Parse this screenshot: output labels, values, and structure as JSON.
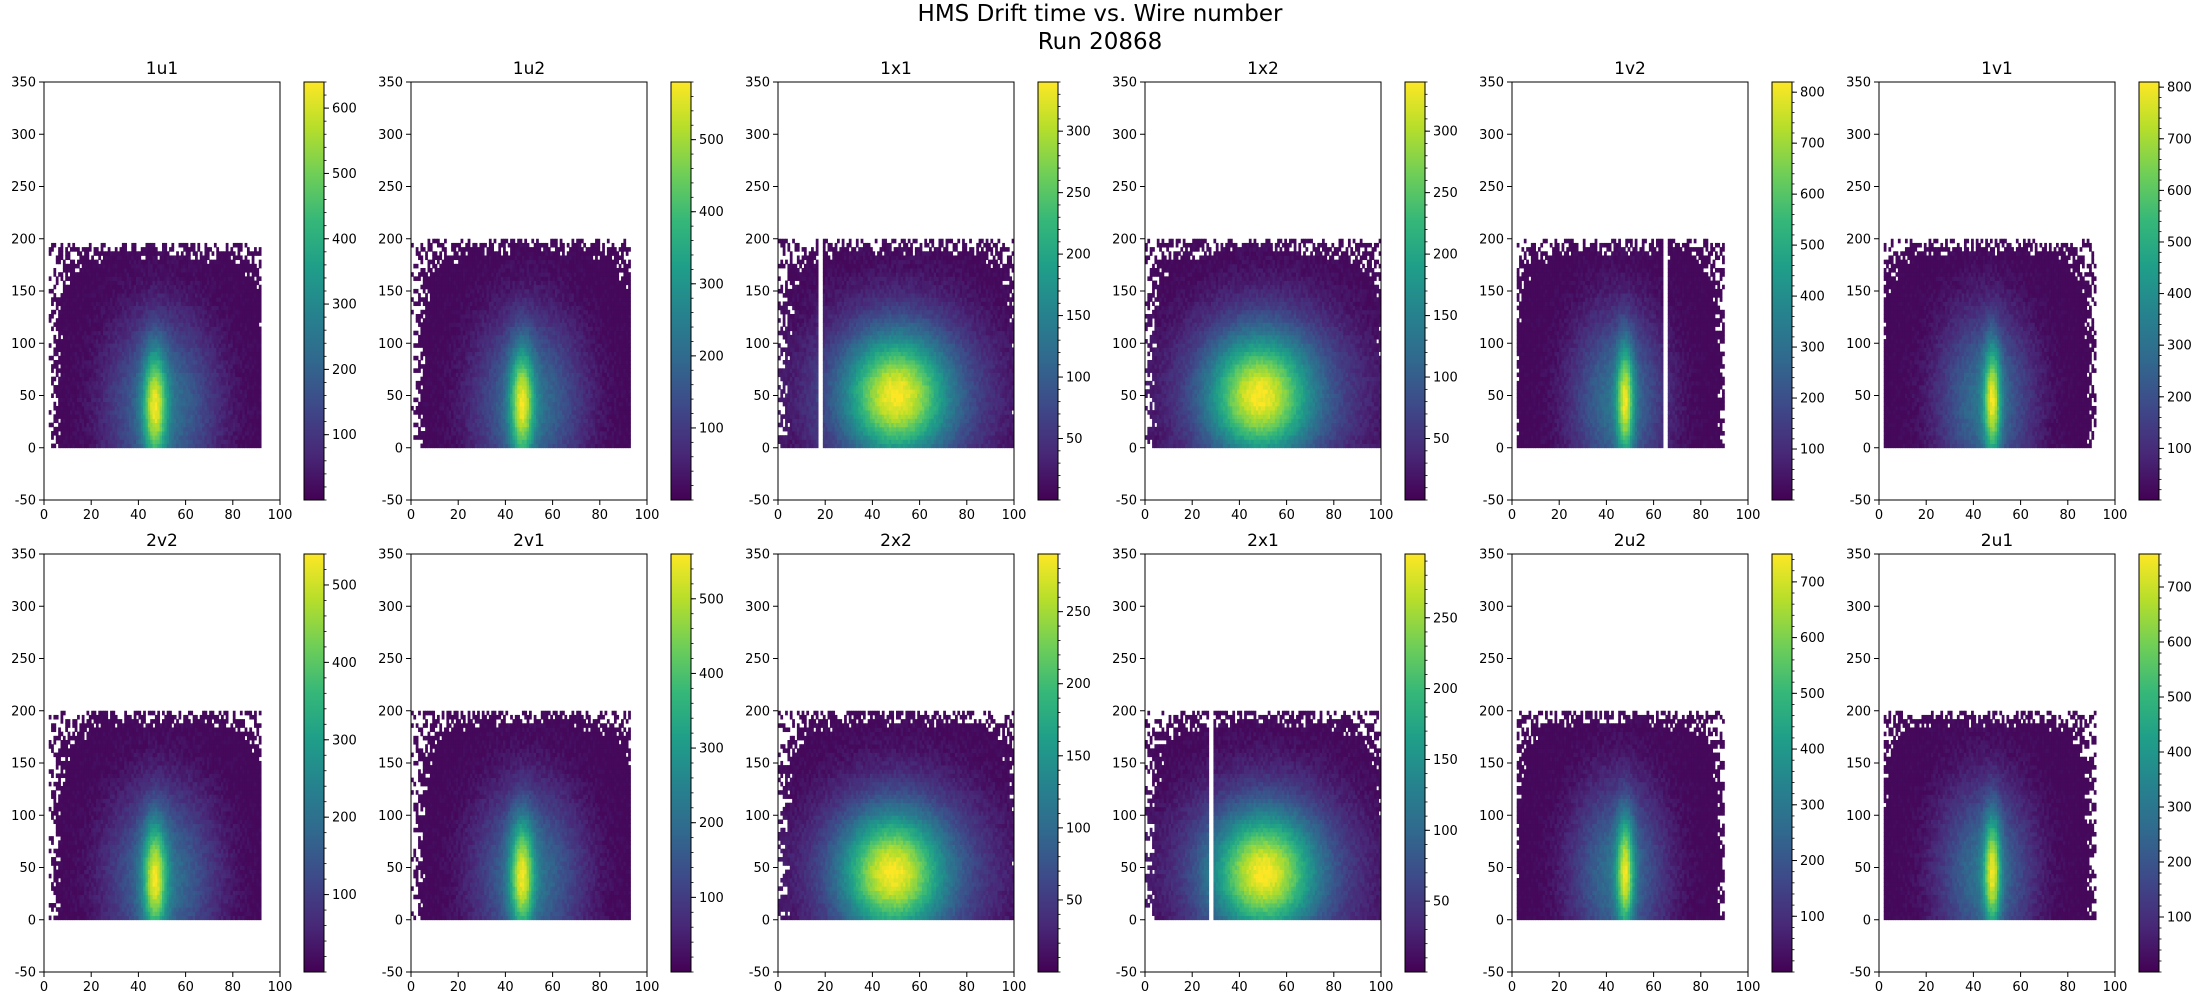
{
  "figure": {
    "title_line1": "HMS Drift time vs. Wire number",
    "title_line2": "Run 20868"
  },
  "colormap": [
    "#440154",
    "#482878",
    "#3e4989",
    "#31688e",
    "#26828e",
    "#1f9e89",
    "#35b779",
    "#6ece58",
    "#b5de2b",
    "#fde725"
  ],
  "chart_data": [
    {
      "type": "heatmap",
      "title": "1u1",
      "xlim": [
        0,
        100
      ],
      "ylim": [
        -50,
        350
      ],
      "x_ticks": [
        0,
        20,
        40,
        60,
        80,
        100
      ],
      "y_ticks": [
        -50,
        0,
        50,
        100,
        150,
        200,
        250,
        300,
        350
      ],
      "colorbar": {
        "min": 0,
        "max": 640,
        "ticks": [
          100,
          200,
          300,
          400,
          500,
          600
        ]
      },
      "peak_wire": 47,
      "peak_time": 40,
      "core_width": 3.5,
      "halo_width": 16,
      "mean_wire": 50,
      "x_range": [
        2,
        92
      ],
      "y_max": 195,
      "gap_wires": []
    },
    {
      "type": "heatmap",
      "title": "1u2",
      "xlim": [
        0,
        100
      ],
      "ylim": [
        -50,
        350
      ],
      "x_ticks": [
        0,
        20,
        40,
        60,
        80,
        100
      ],
      "y_ticks": [
        -50,
        0,
        50,
        100,
        150,
        200,
        250,
        300,
        350
      ],
      "colorbar": {
        "min": 0,
        "max": 580,
        "ticks": [
          100,
          200,
          300,
          400,
          500
        ]
      },
      "peak_wire": 47,
      "peak_time": 42,
      "core_width": 3.5,
      "halo_width": 16,
      "mean_wire": 50,
      "x_range": [
        0,
        93
      ],
      "y_max": 200,
      "gap_wires": []
    },
    {
      "type": "heatmap",
      "title": "1x1",
      "xlim": [
        0,
        100
      ],
      "ylim": [
        -50,
        350
      ],
      "x_ticks": [
        0,
        20,
        40,
        60,
        80,
        100
      ],
      "y_ticks": [
        -50,
        0,
        50,
        100,
        150,
        200,
        250,
        300,
        350
      ],
      "colorbar": {
        "min": 0,
        "max": 340,
        "ticks": [
          50,
          100,
          150,
          200,
          250,
          300
        ]
      },
      "peak_wire": 50,
      "peak_time": 50,
      "core_width": 14,
      "halo_width": 26,
      "mean_wire": 52,
      "x_range": [
        0,
        100
      ],
      "y_max": 200,
      "gap_wires": [
        18
      ]
    },
    {
      "type": "heatmap",
      "title": "1x2",
      "xlim": [
        0,
        100
      ],
      "ylim": [
        -50,
        350
      ],
      "x_ticks": [
        0,
        20,
        40,
        60,
        80,
        100
      ],
      "y_ticks": [
        -50,
        0,
        50,
        100,
        150,
        200,
        250,
        300,
        350
      ],
      "colorbar": {
        "min": 0,
        "max": 340,
        "ticks": [
          50,
          100,
          150,
          200,
          250,
          300
        ]
      },
      "peak_wire": 48,
      "peak_time": 50,
      "core_width": 14,
      "halo_width": 26,
      "mean_wire": 52,
      "x_range": [
        0,
        100
      ],
      "y_max": 200,
      "gap_wires": []
    },
    {
      "type": "heatmap",
      "title": "1v2",
      "xlim": [
        0,
        100
      ],
      "ylim": [
        -50,
        350
      ],
      "x_ticks": [
        0,
        20,
        40,
        60,
        80,
        100
      ],
      "y_ticks": [
        -50,
        0,
        50,
        100,
        150,
        200,
        250,
        300,
        350
      ],
      "colorbar": {
        "min": 0,
        "max": 820,
        "ticks": [
          100,
          200,
          300,
          400,
          500,
          600,
          700,
          800
        ]
      },
      "peak_wire": 48,
      "peak_time": 45,
      "core_width": 2.5,
      "halo_width": 14,
      "mean_wire": 45,
      "x_range": [
        2,
        90
      ],
      "y_max": 200,
      "gap_wires": [
        65
      ]
    },
    {
      "type": "heatmap",
      "title": "1v1",
      "xlim": [
        0,
        100
      ],
      "ylim": [
        -50,
        350
      ],
      "x_ticks": [
        0,
        20,
        40,
        60,
        80,
        100
      ],
      "y_ticks": [
        -50,
        0,
        50,
        100,
        150,
        200,
        250,
        300,
        350
      ],
      "colorbar": {
        "min": 0,
        "max": 810,
        "ticks": [
          100,
          200,
          300,
          400,
          500,
          600,
          700,
          800
        ]
      },
      "peak_wire": 48,
      "peak_time": 45,
      "core_width": 2.5,
      "halo_width": 14,
      "mean_wire": 45,
      "x_range": [
        2,
        92
      ],
      "y_max": 200,
      "gap_wires": []
    },
    {
      "type": "heatmap",
      "title": "2v2",
      "xlim": [
        0,
        100
      ],
      "ylim": [
        -50,
        350
      ],
      "x_ticks": [
        0,
        20,
        40,
        60,
        80,
        100
      ],
      "y_ticks": [
        -50,
        0,
        50,
        100,
        150,
        200,
        250,
        300,
        350
      ],
      "colorbar": {
        "min": 0,
        "max": 540,
        "ticks": [
          100,
          200,
          300,
          400,
          500
        ]
      },
      "peak_wire": 47,
      "peak_time": 40,
      "core_width": 3.5,
      "halo_width": 16,
      "mean_wire": 50,
      "x_range": [
        2,
        92
      ],
      "y_max": 200,
      "gap_wires": []
    },
    {
      "type": "heatmap",
      "title": "2v1",
      "xlim": [
        0,
        100
      ],
      "ylim": [
        -50,
        350
      ],
      "x_ticks": [
        0,
        20,
        40,
        60,
        80,
        100
      ],
      "y_ticks": [
        -50,
        0,
        50,
        100,
        150,
        200,
        250,
        300,
        350
      ],
      "colorbar": {
        "min": 0,
        "max": 560,
        "ticks": [
          100,
          200,
          300,
          400,
          500
        ]
      },
      "peak_wire": 47,
      "peak_time": 42,
      "core_width": 3.5,
      "halo_width": 16,
      "mean_wire": 50,
      "x_range": [
        0,
        93
      ],
      "y_max": 200,
      "gap_wires": []
    },
    {
      "type": "heatmap",
      "title": "2x2",
      "xlim": [
        0,
        100
      ],
      "ylim": [
        -50,
        350
      ],
      "x_ticks": [
        0,
        20,
        40,
        60,
        80,
        100
      ],
      "y_ticks": [
        -50,
        0,
        50,
        100,
        150,
        200,
        250,
        300,
        350
      ],
      "colorbar": {
        "min": 0,
        "max": 290,
        "ticks": [
          50,
          100,
          150,
          200,
          250
        ]
      },
      "peak_wire": 48,
      "peak_time": 45,
      "core_width": 14,
      "halo_width": 26,
      "mean_wire": 52,
      "x_range": [
        0,
        100
      ],
      "y_max": 200,
      "gap_wires": []
    },
    {
      "type": "heatmap",
      "title": "2x1",
      "xlim": [
        0,
        100
      ],
      "ylim": [
        -50,
        350
      ],
      "x_ticks": [
        0,
        20,
        40,
        60,
        80,
        100
      ],
      "y_ticks": [
        -50,
        0,
        50,
        100,
        150,
        200,
        250,
        300,
        350
      ],
      "colorbar": {
        "min": 0,
        "max": 295,
        "ticks": [
          50,
          100,
          150,
          200,
          250
        ]
      },
      "peak_wire": 50,
      "peak_time": 45,
      "core_width": 14,
      "halo_width": 26,
      "mean_wire": 52,
      "x_range": [
        0,
        100
      ],
      "y_max": 200,
      "gap_wires": [
        28
      ]
    },
    {
      "type": "heatmap",
      "title": "2u2",
      "xlim": [
        0,
        100
      ],
      "ylim": [
        -50,
        350
      ],
      "x_ticks": [
        0,
        20,
        40,
        60,
        80,
        100
      ],
      "y_ticks": [
        -50,
        0,
        50,
        100,
        150,
        200,
        250,
        300,
        350
      ],
      "colorbar": {
        "min": 0,
        "max": 750,
        "ticks": [
          100,
          200,
          300,
          400,
          500,
          600,
          700
        ]
      },
      "peak_wire": 48,
      "peak_time": 45,
      "core_width": 2.5,
      "halo_width": 14,
      "mean_wire": 45,
      "x_range": [
        2,
        90
      ],
      "y_max": 200,
      "gap_wires": []
    },
    {
      "type": "heatmap",
      "title": "2u1",
      "xlim": [
        0,
        100
      ],
      "ylim": [
        -50,
        350
      ],
      "x_ticks": [
        0,
        20,
        40,
        60,
        80,
        100
      ],
      "y_ticks": [
        -50,
        0,
        50,
        100,
        150,
        200,
        250,
        300,
        350
      ],
      "colorbar": {
        "min": 0,
        "max": 760,
        "ticks": [
          100,
          200,
          300,
          400,
          500,
          600,
          700
        ]
      },
      "peak_wire": 48,
      "peak_time": 45,
      "core_width": 2.5,
      "halo_width": 14,
      "mean_wire": 45,
      "x_range": [
        2,
        92
      ],
      "y_max": 200,
      "gap_wires": []
    }
  ]
}
